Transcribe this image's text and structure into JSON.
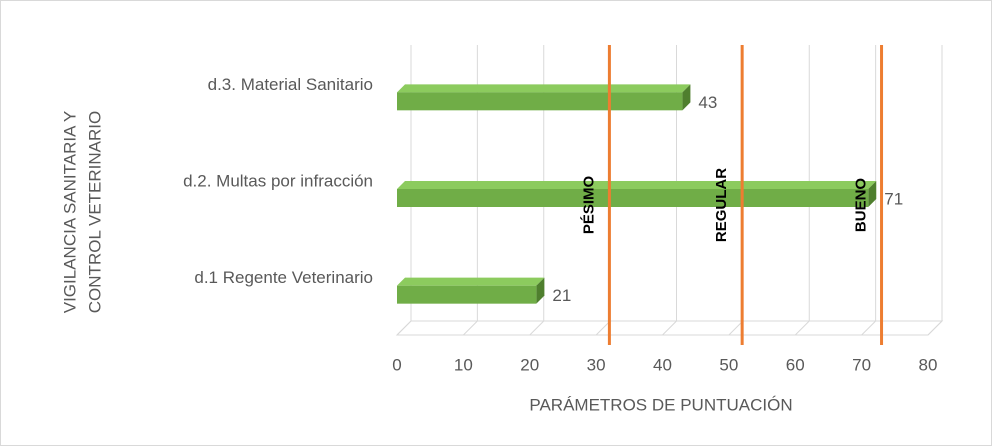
{
  "chart_data": {
    "type": "bar3d_horizontal",
    "ylabel": [
      "VIGILANCIA SANITARIA Y",
      "CONTROL VETERINARIO"
    ],
    "xlabel": "PARÁMETROS DE PUNTUACIÓN",
    "categories": [
      "d.1 Regente Veterinario",
      "d.2. Multas por infracción",
      "d.3. Material Sanitario"
    ],
    "values": [
      21,
      71,
      43
    ],
    "color": "#70ad47",
    "xlim": [
      0,
      80
    ],
    "xticks": [
      0,
      10,
      20,
      30,
      40,
      50,
      60,
      70,
      80
    ],
    "grid": true,
    "reference_lines": [
      {
        "value": 32,
        "label": "PÉSIMO",
        "color": "#ed7d31"
      },
      {
        "value": 52,
        "label": "REGULAR",
        "color": "#ed7d31"
      },
      {
        "value": 73,
        "label": "BUENO",
        "color": "#ed7d31"
      }
    ]
  }
}
